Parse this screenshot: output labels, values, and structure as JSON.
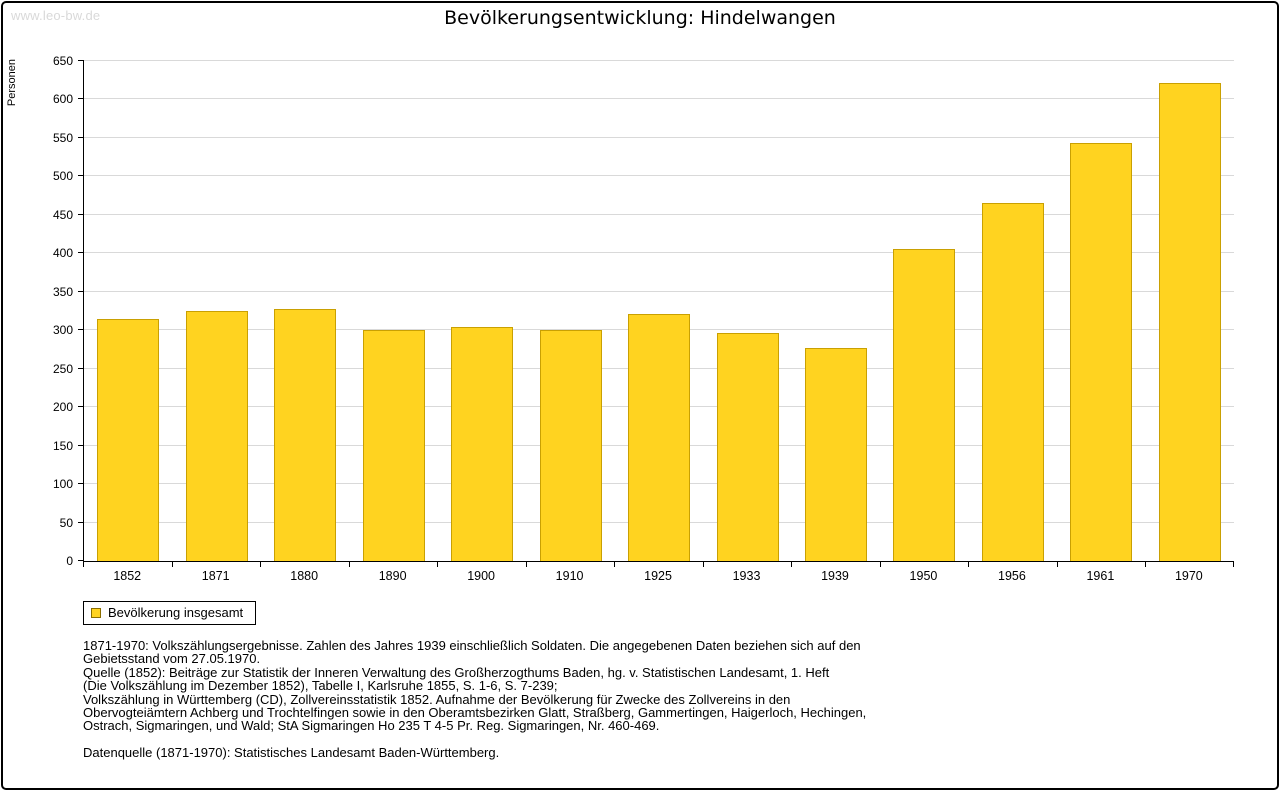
{
  "watermark": "www.leo-bw.de",
  "chart_data": {
    "type": "bar",
    "title": "Bevölkerungsentwicklung: Hindelwangen",
    "ylabel": "Personen",
    "xlabel": "",
    "categories": [
      "1852",
      "1871",
      "1880",
      "1890",
      "1900",
      "1910",
      "1925",
      "1933",
      "1939",
      "1950",
      "1956",
      "1961",
      "1970"
    ],
    "values": [
      314,
      325,
      327,
      300,
      304,
      300,
      321,
      296,
      277,
      405,
      466,
      544,
      622
    ],
    "ylim": [
      0,
      650
    ],
    "ytick_step": 50,
    "grid": true,
    "legend_position": "bottom-left",
    "bar_color": "#FFD320",
    "bar_border_color": "#C9A002"
  },
  "legend": {
    "label": "Bevölkerung insgesamt"
  },
  "footnotes": {
    "lines": [
      "1871-1970: Volkszählungsergebnisse. Zahlen des Jahres 1939 einschließlich Soldaten. Die angegebenen Daten beziehen sich auf den",
      "Gebietsstand vom 27.05.1970.",
      "Quelle (1852): Beiträge zur Statistik der Inneren Verwaltung des Großherzogthums Baden, hg. v. Statistischen Landesamt, 1. Heft",
      "(Die Volkszählung im Dezember 1852), Tabelle I, Karlsruhe 1855, S. 1-6, S. 7-239;",
      "Volkszählung in Württemberg (CD), Zollvereinsstatistik 1852. Aufnahme der Bevölkerung für Zwecke des Zollvereins in den",
      "Obervogteiämtern Achberg und Trochtelfingen sowie in den Oberamtsbezirken Glatt, Straßberg, Gammertingen, Haigerloch, Hechingen,",
      "Ostrach, Sigmaringen, und Wald; StA Sigmaringen Ho 235 T 4-5 Pr. Reg. Sigmaringen, Nr. 460-469.",
      "",
      "Datenquelle (1871-1970): Statistisches Landesamt Baden-Württemberg."
    ]
  }
}
